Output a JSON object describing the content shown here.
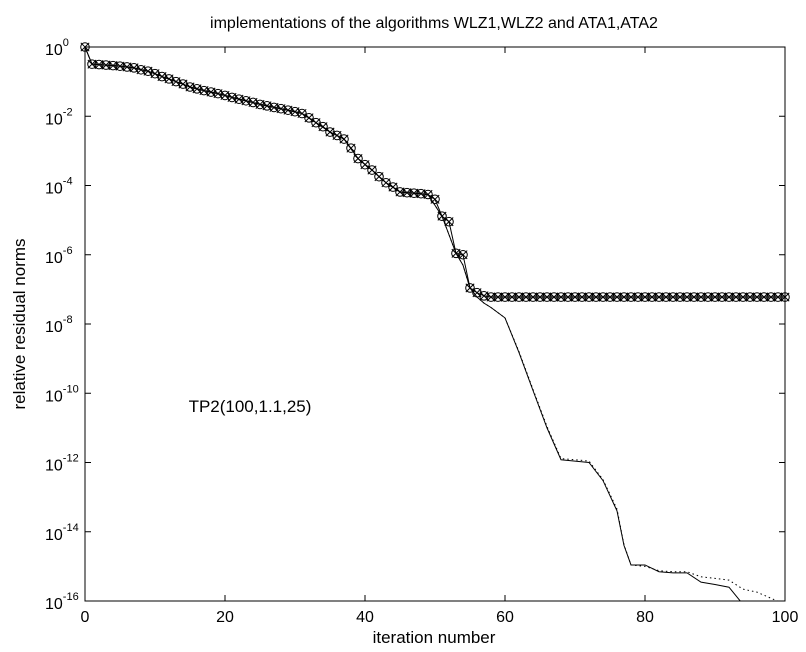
{
  "chart_data": {
    "type": "line",
    "title": "implementations of the algorithms WLZ1,WLZ2 and ATA1,ATA2",
    "xlabel": "iteration number",
    "ylabel": "relative residual norms",
    "annotation": "TP2(100,1.1,25)",
    "xlim": [
      0,
      100
    ],
    "ylim": [
      1e-16,
      1
    ],
    "yscale": "log",
    "grid": false,
    "x_ticks": [
      {
        "value": 0,
        "label": "0"
      },
      {
        "value": 20,
        "label": "20"
      },
      {
        "value": 40,
        "label": "40"
      },
      {
        "value": 60,
        "label": "60"
      },
      {
        "value": 80,
        "label": "80"
      },
      {
        "value": 100,
        "label": "100"
      }
    ],
    "y_ticks": [
      {
        "value": 1,
        "base": "10",
        "exp": "0"
      },
      {
        "value": 0.01,
        "base": "10",
        "exp": "-2"
      },
      {
        "value": 0.0001,
        "base": "10",
        "exp": "-4"
      },
      {
        "value": 1e-06,
        "base": "10",
        "exp": "-6"
      },
      {
        "value": 1e-08,
        "base": "10",
        "exp": "-8"
      },
      {
        "value": 1e-10,
        "base": "10",
        "exp": "-10"
      },
      {
        "value": 1e-12,
        "base": "10",
        "exp": "-12"
      },
      {
        "value": 1e-14,
        "base": "10",
        "exp": "-14"
      },
      {
        "value": 1e-16,
        "base": "10",
        "exp": "-16"
      }
    ],
    "series": [
      {
        "style": "solid",
        "x": [
          0,
          1,
          3,
          5,
          7,
          9,
          11,
          13,
          15,
          17,
          19,
          21,
          23,
          25,
          27,
          29,
          31,
          33,
          35,
          37,
          39,
          41,
          43,
          45,
          47,
          49,
          51,
          53,
          54,
          55,
          56,
          57,
          58,
          60,
          62,
          64,
          66,
          68,
          70,
          72,
          74,
          76,
          77,
          78,
          80,
          82,
          84,
          86,
          88,
          90,
          92,
          94,
          96,
          98,
          100
        ],
        "y": [
          1,
          0.32,
          0.3,
          0.28,
          0.25,
          0.2,
          0.14,
          0.1,
          0.07,
          0.055,
          0.045,
          0.035,
          0.028,
          0.022,
          0.018,
          0.015,
          0.012,
          0.0065,
          0.0035,
          0.0022,
          0.0006,
          0.00028,
          0.00012,
          6.5e-05,
          6e-05,
          5.5e-05,
          1.3e-05,
          1.1e-06,
          5e-07,
          1.1e-07,
          6e-08,
          4e-08,
          3e-08,
          1.5e-08,
          1.5e-09,
          1.2e-10,
          1e-11,
          1.2e-12,
          1.1e-12,
          1e-12,
          3e-13,
          4e-14,
          4e-15,
          1.1e-15,
          1.1e-15,
          7e-16,
          6.5e-16,
          6.5e-16,
          3.5e-16,
          3e-16,
          2.5e-16,
          8e-17,
          6e-17,
          4.5e-17,
          2e-17
        ]
      },
      {
        "style": "dotted",
        "x": [
          0,
          1,
          3,
          5,
          7,
          9,
          11,
          13,
          15,
          17,
          19,
          21,
          23,
          25,
          27,
          29,
          31,
          33,
          35,
          37,
          39,
          41,
          43,
          45,
          47,
          49,
          51,
          53,
          54,
          55,
          56,
          57,
          58,
          60,
          62,
          64,
          66,
          68,
          70,
          72,
          74,
          76,
          77,
          78,
          80,
          82,
          84,
          86,
          88,
          90,
          92,
          94,
          96,
          98,
          100
        ],
        "y": [
          1,
          0.32,
          0.3,
          0.28,
          0.25,
          0.2,
          0.14,
          0.1,
          0.07,
          0.055,
          0.045,
          0.035,
          0.028,
          0.022,
          0.018,
          0.015,
          0.012,
          0.0065,
          0.0035,
          0.0022,
          0.0006,
          0.00028,
          0.00012,
          6.5e-05,
          6e-05,
          5.5e-05,
          1.3e-05,
          1.1e-06,
          5e-07,
          1.1e-07,
          6e-08,
          4e-08,
          3e-08,
          1.5e-08,
          1.6e-09,
          1.3e-10,
          1.1e-11,
          1.3e-12,
          1.2e-12,
          1.1e-12,
          3.2e-13,
          4.5e-14,
          4.2e-15,
          1.1e-15,
          1e-15,
          7.5e-16,
          7e-16,
          7e-16,
          5e-16,
          4.5e-16,
          4e-16,
          2.2e-16,
          1.8e-16,
          1.2e-16,
          8e-17
        ]
      },
      {
        "style": "markers-x",
        "x": [
          0,
          1,
          2,
          3,
          4,
          5,
          6,
          7,
          8,
          9,
          10,
          11,
          12,
          13,
          14,
          15,
          16,
          17,
          18,
          19,
          20,
          21,
          22,
          23,
          24,
          25,
          26,
          27,
          28,
          29,
          30,
          31,
          32,
          33,
          34,
          35,
          36,
          37,
          38,
          39,
          40,
          41,
          42,
          43,
          44,
          45,
          46,
          47,
          48,
          49,
          50,
          51,
          52,
          53,
          54,
          55,
          56,
          57,
          58,
          59,
          60,
          61,
          62,
          63,
          64,
          65,
          66,
          67,
          68,
          69,
          70,
          71,
          72,
          73,
          74,
          75,
          76,
          77,
          78,
          79,
          80,
          81,
          82,
          83,
          84,
          85,
          86,
          87,
          88,
          89,
          90,
          91,
          92,
          93,
          94,
          95,
          96,
          97,
          98,
          99,
          100
        ],
        "y": [
          1,
          0.32,
          0.31,
          0.3,
          0.29,
          0.28,
          0.265,
          0.25,
          0.22,
          0.2,
          0.17,
          0.14,
          0.12,
          0.1,
          0.085,
          0.07,
          0.062,
          0.055,
          0.05,
          0.045,
          0.04,
          0.035,
          0.031,
          0.028,
          0.025,
          0.022,
          0.02,
          0.018,
          0.0165,
          0.015,
          0.0135,
          0.012,
          0.009,
          0.0065,
          0.005,
          0.0035,
          0.0028,
          0.0022,
          0.0012,
          0.0006,
          0.0004,
          0.00028,
          0.00018,
          0.00012,
          9e-05,
          6.5e-05,
          6.2e-05,
          6e-05,
          5.8e-05,
          5.5e-05,
          4e-05,
          1.3e-05,
          9e-06,
          1.1e-06,
          1e-06,
          1.1e-07,
          8e-08,
          6.5e-08,
          6e-08,
          6e-08,
          6e-08,
          6e-08,
          6e-08,
          6e-08,
          6e-08,
          6e-08,
          6e-08,
          6e-08,
          6e-08,
          6e-08,
          6e-08,
          6e-08,
          6e-08,
          6e-08,
          6e-08,
          6e-08,
          6e-08,
          6e-08,
          6e-08,
          6e-08,
          6e-08,
          6e-08,
          6e-08,
          6e-08,
          6e-08,
          6e-08,
          6e-08,
          6e-08,
          6e-08,
          6e-08,
          6e-08,
          6e-08,
          6e-08,
          6e-08,
          6e-08,
          6e-08,
          6e-08,
          6e-08,
          6e-08,
          6e-08,
          6e-08
        ]
      },
      {
        "style": "markers-o",
        "x": [
          0,
          1,
          2,
          3,
          4,
          5,
          6,
          7,
          8,
          9,
          10,
          11,
          12,
          13,
          14,
          15,
          16,
          17,
          18,
          19,
          20,
          21,
          22,
          23,
          24,
          25,
          26,
          27,
          28,
          29,
          30,
          31,
          32,
          33,
          34,
          35,
          36,
          37,
          38,
          39,
          40,
          41,
          42,
          43,
          44,
          45,
          46,
          47,
          48,
          49,
          50,
          51,
          52,
          53,
          54,
          55,
          56,
          57,
          58,
          59,
          60,
          61,
          62,
          63,
          64,
          65,
          66,
          67,
          68,
          69,
          70,
          71,
          72,
          73,
          74,
          75,
          76,
          77,
          78,
          79,
          80,
          81,
          82,
          83,
          84,
          85,
          86,
          87,
          88,
          89,
          90,
          91,
          92,
          93,
          94,
          95,
          96,
          97,
          98,
          99,
          100
        ],
        "y": [
          1,
          0.32,
          0.31,
          0.3,
          0.29,
          0.28,
          0.265,
          0.25,
          0.22,
          0.2,
          0.17,
          0.14,
          0.12,
          0.1,
          0.085,
          0.07,
          0.062,
          0.055,
          0.05,
          0.045,
          0.04,
          0.035,
          0.031,
          0.028,
          0.025,
          0.022,
          0.02,
          0.018,
          0.0165,
          0.015,
          0.0135,
          0.012,
          0.009,
          0.0065,
          0.005,
          0.0035,
          0.0028,
          0.0022,
          0.0012,
          0.0006,
          0.0004,
          0.00028,
          0.00018,
          0.00012,
          9e-05,
          6.5e-05,
          6.2e-05,
          6e-05,
          5.8e-05,
          5.5e-05,
          4e-05,
          1.3e-05,
          9e-06,
          1.1e-06,
          1e-06,
          1.1e-07,
          8e-08,
          6.5e-08,
          6e-08,
          6e-08,
          6e-08,
          6e-08,
          6e-08,
          6e-08,
          6e-08,
          6e-08,
          6e-08,
          6e-08,
          6e-08,
          6e-08,
          6e-08,
          6e-08,
          6e-08,
          6e-08,
          6e-08,
          6e-08,
          6e-08,
          6e-08,
          6e-08,
          6e-08,
          6e-08,
          6e-08,
          6e-08,
          6e-08,
          6e-08,
          6e-08,
          6e-08,
          6e-08,
          6e-08,
          6e-08,
          6e-08,
          6e-08,
          6e-08,
          6e-08,
          6e-08,
          6e-08,
          6e-08,
          6e-08,
          6e-08,
          6e-08,
          6e-08
        ]
      }
    ]
  }
}
